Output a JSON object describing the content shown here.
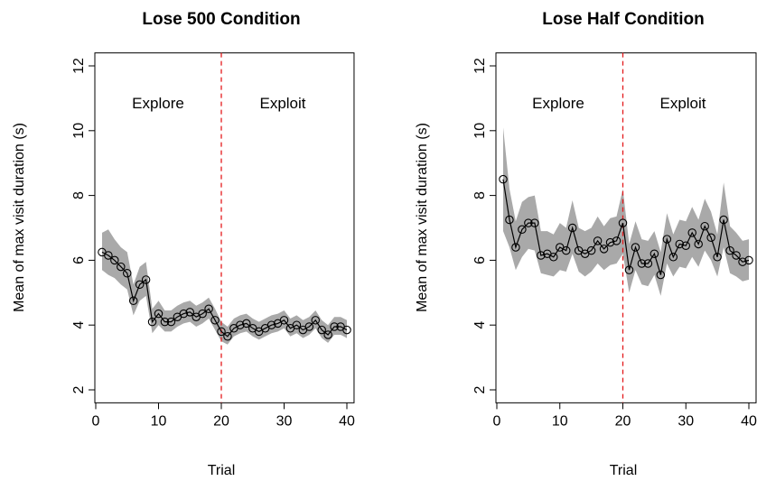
{
  "chart_data": [
    {
      "type": "line",
      "title": "Lose 500 Condition",
      "xlabel": "Trial",
      "ylabel": "Mean of max visit duration (s)",
      "xlim": [
        0,
        41
      ],
      "ylim": [
        1.6,
        12.4
      ],
      "xticks": [
        0,
        10,
        20,
        30,
        40
      ],
      "yticks": [
        2,
        4,
        6,
        8,
        10,
        12
      ],
      "vline": {
        "x": 20,
        "color": "#e41a1c",
        "style": "dashed"
      },
      "annotations": [
        {
          "text": "Explore",
          "x": 10,
          "y": 11
        },
        {
          "text": "Exploit",
          "x": 30,
          "y": 11
        }
      ],
      "band_color": "#a9a9a9",
      "x": [
        1,
        2,
        3,
        4,
        5,
        6,
        7,
        8,
        9,
        10,
        11,
        12,
        13,
        14,
        15,
        16,
        17,
        18,
        19,
        20,
        21,
        22,
        23,
        24,
        25,
        26,
        27,
        28,
        29,
        30,
        31,
        32,
        33,
        34,
        35,
        36,
        37,
        38,
        39,
        40
      ],
      "series": [
        {
          "values": [
            6.25,
            6.15,
            6.0,
            5.8,
            5.6,
            4.75,
            5.25,
            5.4,
            4.1,
            4.35,
            4.1,
            4.1,
            4.25,
            4.35,
            4.4,
            4.25,
            4.35,
            4.5,
            4.15,
            3.8,
            3.65,
            3.9,
            4.0,
            4.05,
            3.9,
            3.8,
            3.9,
            4.0,
            4.05,
            4.15,
            3.9,
            4.0,
            3.85,
            3.95,
            4.15,
            3.85,
            3.7,
            3.95,
            3.95,
            3.85
          ],
          "lower": [
            5.7,
            5.55,
            5.45,
            5.25,
            5.1,
            4.3,
            4.75,
            4.9,
            3.75,
            4.0,
            3.8,
            3.8,
            3.95,
            4.05,
            4.1,
            3.95,
            4.05,
            4.2,
            3.85,
            3.5,
            3.4,
            3.65,
            3.75,
            3.8,
            3.65,
            3.55,
            3.65,
            3.75,
            3.8,
            3.9,
            3.65,
            3.75,
            3.6,
            3.7,
            3.9,
            3.6,
            3.45,
            3.7,
            3.7,
            3.6
          ],
          "upper": [
            6.85,
            6.95,
            6.65,
            6.4,
            6.25,
            5.25,
            5.8,
            5.95,
            4.5,
            4.75,
            4.45,
            4.45,
            4.6,
            4.7,
            4.75,
            4.6,
            4.7,
            4.85,
            4.5,
            4.1,
            3.95,
            4.2,
            4.3,
            4.35,
            4.2,
            4.1,
            4.2,
            4.3,
            4.35,
            4.45,
            4.2,
            4.3,
            4.15,
            4.25,
            4.45,
            4.15,
            4.0,
            4.25,
            4.25,
            4.15
          ]
        }
      ]
    },
    {
      "type": "line",
      "title": "Lose Half Condition",
      "xlabel": "Trial",
      "ylabel": "Mean of max visit duration (s)",
      "xlim": [
        0,
        41
      ],
      "ylim": [
        1.6,
        12.4
      ],
      "xticks": [
        0,
        10,
        20,
        30,
        40
      ],
      "yticks": [
        2,
        4,
        6,
        8,
        10,
        12
      ],
      "vline": {
        "x": 20,
        "color": "#e41a1c",
        "style": "dashed"
      },
      "annotations": [
        {
          "text": "Explore",
          "x": 10,
          "y": 11
        },
        {
          "text": "Exploit",
          "x": 30,
          "y": 11
        }
      ],
      "band_color": "#a9a9a9",
      "x": [
        1,
        2,
        3,
        4,
        5,
        6,
        7,
        8,
        9,
        10,
        11,
        12,
        13,
        14,
        15,
        16,
        17,
        18,
        19,
        20,
        21,
        22,
        23,
        24,
        25,
        26,
        27,
        28,
        29,
        30,
        31,
        32,
        33,
        34,
        35,
        36,
        37,
        38,
        39,
        40
      ],
      "series": [
        {
          "values": [
            8.5,
            7.25,
            6.4,
            6.95,
            7.15,
            7.15,
            6.15,
            6.2,
            6.1,
            6.4,
            6.3,
            7.0,
            6.3,
            6.2,
            6.3,
            6.6,
            6.35,
            6.55,
            6.6,
            7.15,
            5.7,
            6.4,
            5.9,
            5.9,
            6.2,
            5.55,
            6.65,
            6.1,
            6.5,
            6.45,
            6.85,
            6.5,
            7.05,
            6.7,
            6.1,
            7.25,
            6.3,
            6.15,
            5.95,
            6.0
          ],
          "lower": [
            6.9,
            6.4,
            5.7,
            6.1,
            6.35,
            6.3,
            5.6,
            5.55,
            5.5,
            5.7,
            5.65,
            6.2,
            5.65,
            5.5,
            5.65,
            5.9,
            5.7,
            5.85,
            5.9,
            6.2,
            5.0,
            5.7,
            5.25,
            5.2,
            5.55,
            4.9,
            5.9,
            5.5,
            5.8,
            5.75,
            6.1,
            5.8,
            6.3,
            6.0,
            5.5,
            6.4,
            5.6,
            5.5,
            5.35,
            5.4
          ],
          "upper": [
            10.1,
            8.2,
            7.2,
            7.8,
            7.95,
            8.0,
            6.9,
            6.9,
            6.8,
            7.15,
            7.0,
            7.85,
            7.0,
            6.9,
            7.0,
            7.35,
            7.05,
            7.3,
            7.35,
            8.2,
            6.5,
            7.2,
            6.65,
            6.6,
            6.9,
            6.25,
            7.45,
            6.8,
            7.25,
            7.2,
            7.65,
            7.25,
            7.9,
            7.5,
            6.8,
            8.4,
            7.05,
            6.85,
            6.6,
            6.65
          ]
        }
      ]
    }
  ]
}
